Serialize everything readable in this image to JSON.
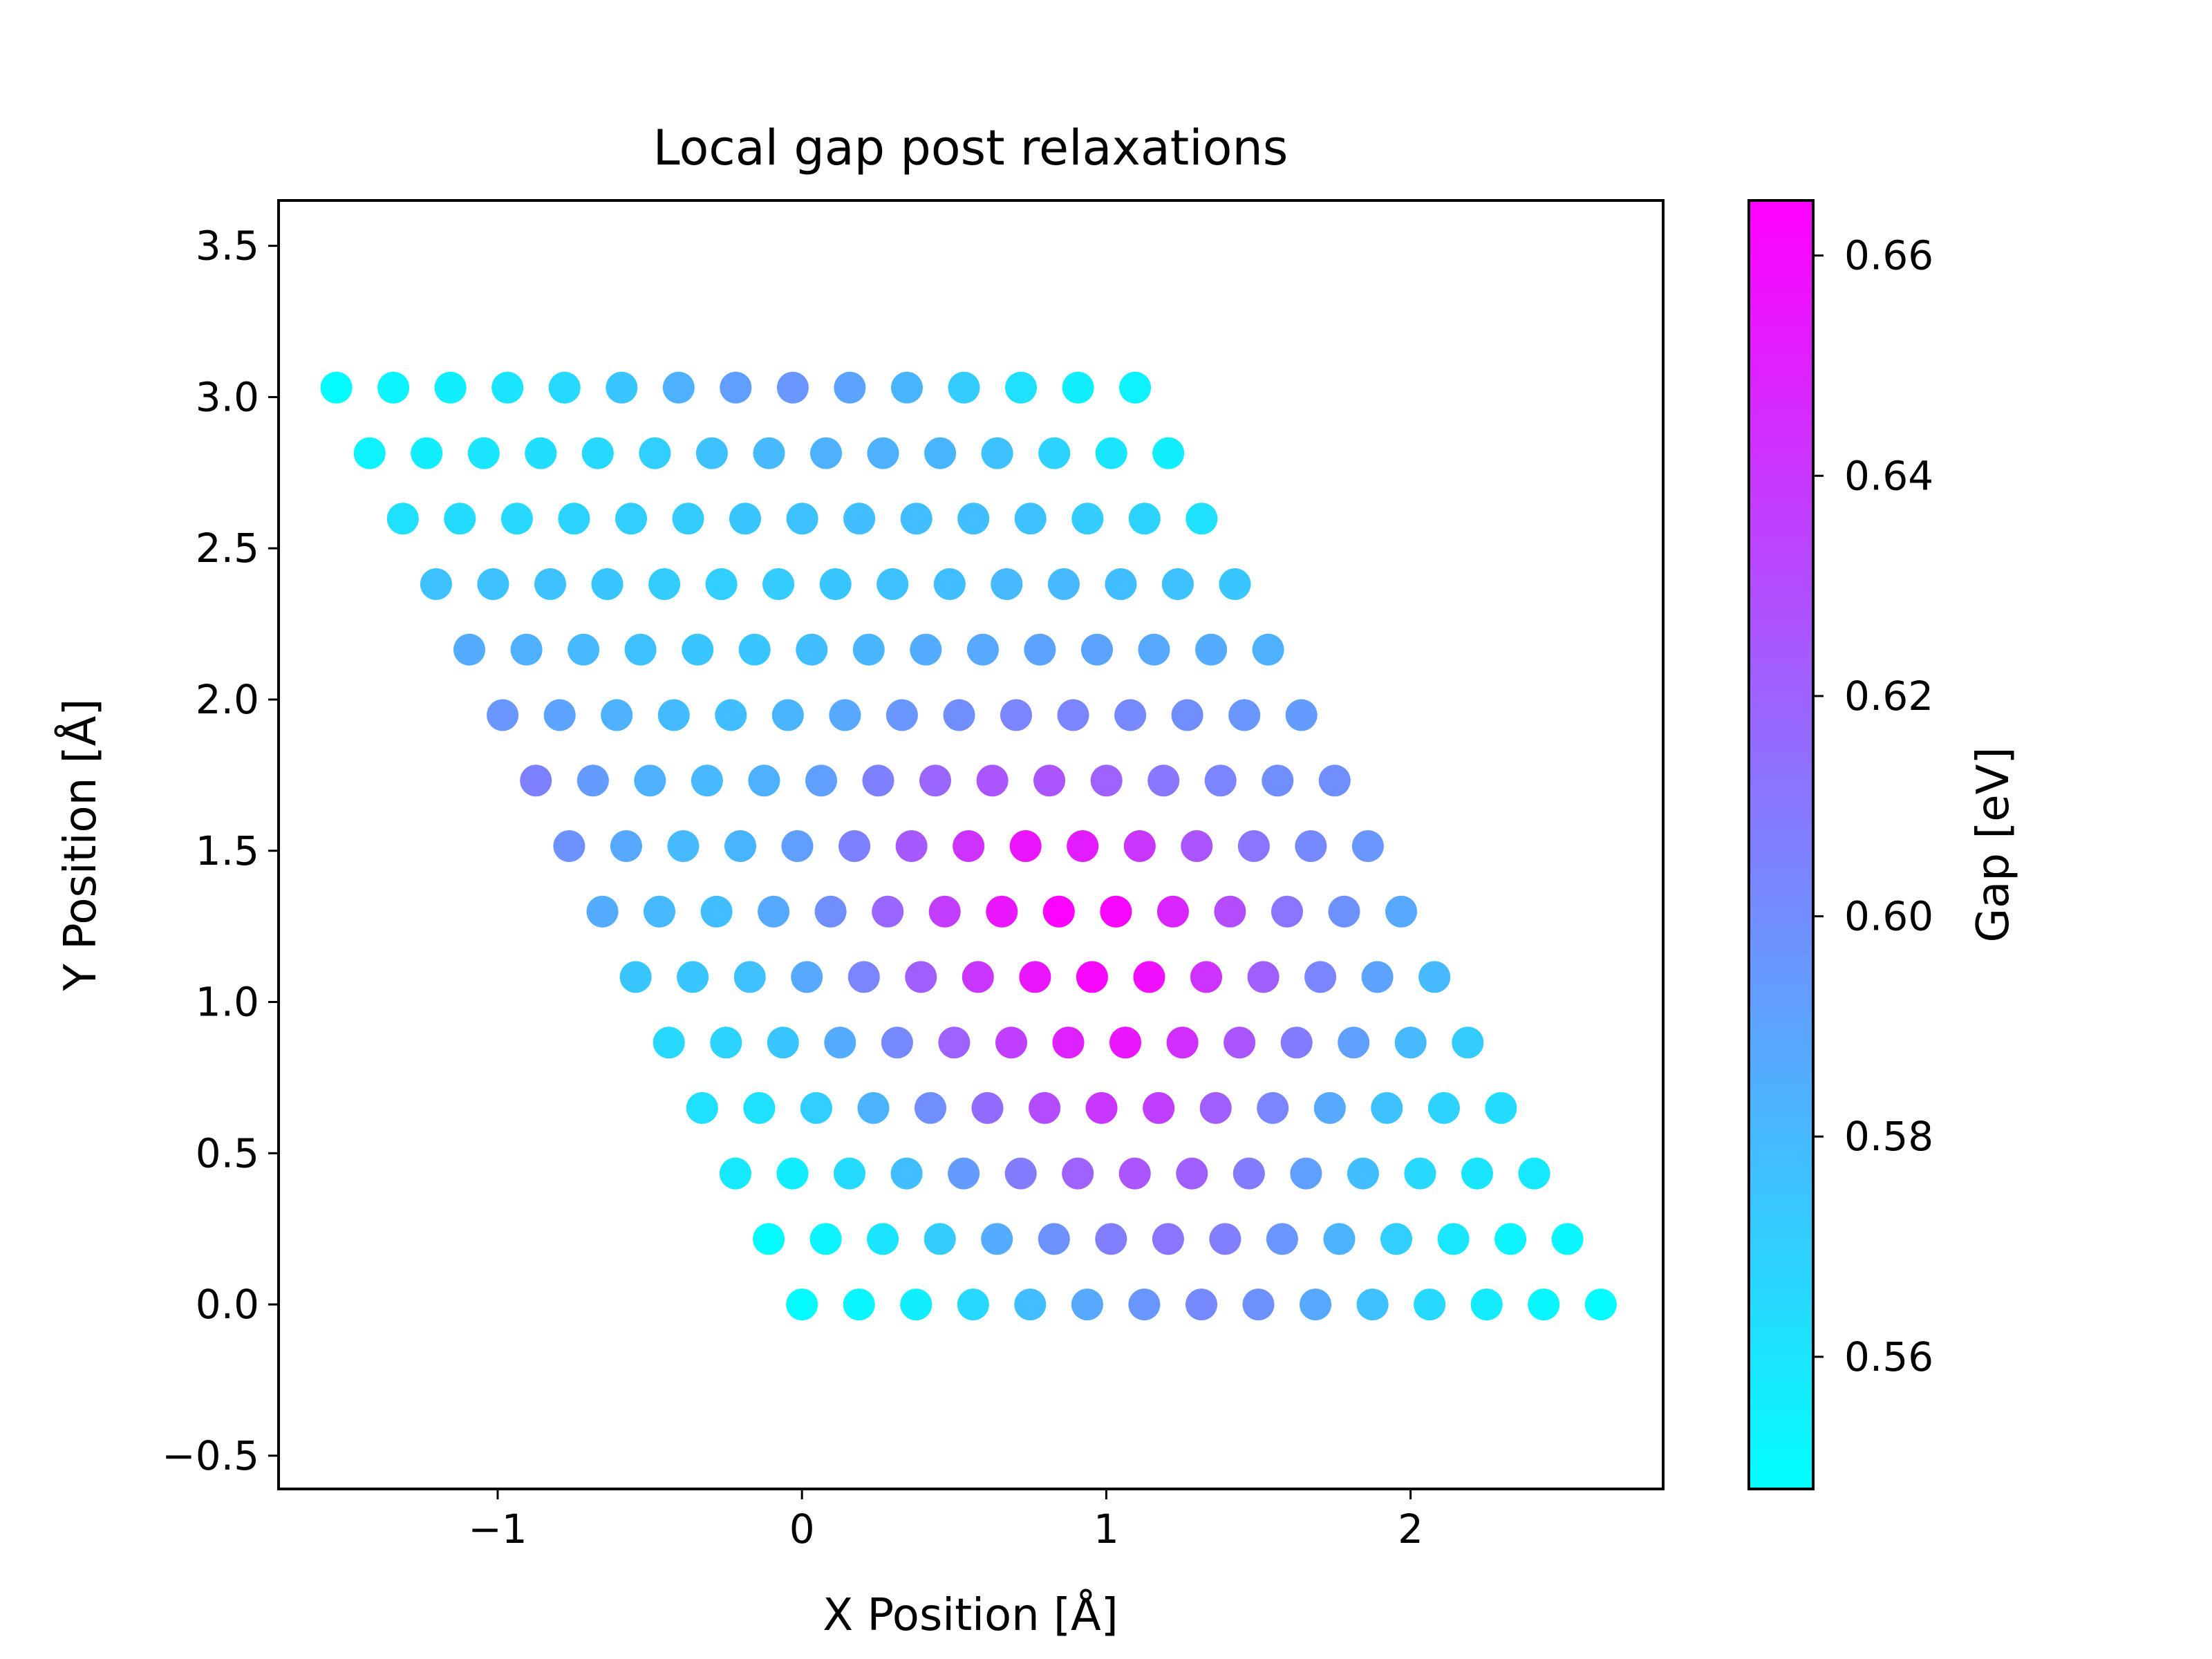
{
  "chart_data": {
    "type": "scatter",
    "title": "Local gap post relaxations",
    "xlabel": "X Position [Å]",
    "ylabel": "Y Position [Å]",
    "xlim": [
      -1.72,
      2.83
    ],
    "ylim": [
      -0.61,
      3.65
    ],
    "xticks": [
      {
        "v": -1,
        "label": "−1"
      },
      {
        "v": 0,
        "label": "0"
      },
      {
        "v": 1,
        "label": "1"
      },
      {
        "v": 2,
        "label": "2"
      }
    ],
    "yticks": [
      {
        "v": -0.5,
        "label": "−0.5"
      },
      {
        "v": 0,
        "label": "0.0"
      },
      {
        "v": 0.5,
        "label": "0.5"
      },
      {
        "v": 1,
        "label": "1.0"
      },
      {
        "v": 1.5,
        "label": "1.5"
      },
      {
        "v": 2,
        "label": "2.0"
      },
      {
        "v": 2.5,
        "label": "2.5"
      },
      {
        "v": 3,
        "label": "3.0"
      },
      {
        "v": 3.5,
        "label": "3.5"
      }
    ],
    "grid": false,
    "lattice": {
      "a1": [
        0.1875,
        0.0
      ],
      "a2": [
        -0.1093,
        0.2165
      ],
      "count_a1": 15,
      "count_a2": 15,
      "note_a1_index": "column j: x = j*a1x + i*a2x, y = i*a2y (row i from bottom)"
    },
    "gap_ev": [
      [
        0.55,
        0.552,
        0.556,
        0.566,
        0.578,
        0.588,
        0.596,
        0.602,
        0.598,
        0.588,
        0.577,
        0.566,
        0.557,
        0.552,
        0.55
      ],
      [
        0.55,
        0.553,
        0.56,
        0.572,
        0.586,
        0.598,
        0.607,
        0.612,
        0.607,
        0.596,
        0.583,
        0.57,
        0.559,
        0.553,
        0.552
      ],
      [
        0.558,
        0.556,
        0.565,
        0.578,
        0.594,
        0.608,
        0.62,
        0.626,
        0.621,
        0.608,
        0.592,
        0.578,
        0.566,
        0.56,
        0.558
      ],
      [
        0.562,
        0.562,
        0.57,
        0.583,
        0.6,
        0.616,
        0.63,
        0.64,
        0.636,
        0.622,
        0.604,
        0.588,
        0.576,
        0.568,
        0.564
      ],
      [
        0.566,
        0.568,
        0.574,
        0.586,
        0.602,
        0.62,
        0.636,
        0.65,
        0.655,
        0.644,
        0.626,
        0.608,
        0.592,
        0.58,
        0.572
      ],
      [
        0.574,
        0.574,
        0.577,
        0.588,
        0.604,
        0.622,
        0.64,
        0.655,
        0.662,
        0.658,
        0.642,
        0.622,
        0.604,
        0.59,
        0.58
      ],
      [
        0.586,
        0.58,
        0.578,
        0.587,
        0.6,
        0.618,
        0.637,
        0.655,
        0.664,
        0.662,
        0.648,
        0.63,
        0.612,
        0.598,
        0.588
      ],
      [
        0.598,
        0.588,
        0.58,
        0.582,
        0.592,
        0.606,
        0.624,
        0.642,
        0.656,
        0.652,
        0.64,
        0.626,
        0.612,
        0.602,
        0.596
      ],
      [
        0.606,
        0.594,
        0.584,
        0.58,
        0.584,
        0.592,
        0.606,
        0.618,
        0.626,
        0.626,
        0.62,
        0.61,
        0.604,
        0.6,
        0.6
      ],
      [
        0.596,
        0.59,
        0.584,
        0.579,
        0.578,
        0.582,
        0.588,
        0.596,
        0.6,
        0.604,
        0.604,
        0.602,
        0.6,
        0.596,
        0.594
      ],
      [
        0.586,
        0.584,
        0.58,
        0.576,
        0.574,
        0.574,
        0.578,
        0.582,
        0.586,
        0.588,
        0.59,
        0.59,
        0.588,
        0.586,
        0.584
      ],
      [
        0.576,
        0.576,
        0.576,
        0.574,
        0.572,
        0.57,
        0.572,
        0.574,
        0.576,
        0.578,
        0.58,
        0.58,
        0.578,
        0.576,
        0.574
      ],
      [
        0.562,
        0.564,
        0.566,
        0.568,
        0.57,
        0.572,
        0.574,
        0.576,
        0.578,
        0.578,
        0.578,
        0.576,
        0.572,
        0.568,
        0.562
      ],
      [
        0.554,
        0.556,
        0.56,
        0.563,
        0.566,
        0.57,
        0.576,
        0.58,
        0.584,
        0.584,
        0.582,
        0.576,
        0.568,
        0.56,
        0.556
      ],
      [
        0.55,
        0.553,
        0.556,
        0.56,
        0.566,
        0.574,
        0.584,
        0.592,
        0.596,
        0.59,
        0.582,
        0.572,
        0.562,
        0.556,
        0.554
      ]
    ],
    "colorbar": {
      "label": "Gap [eV]",
      "colormap": "cool",
      "vmin": 0.548,
      "vmax": 0.665,
      "ticks": [
        {
          "v": 0.56,
          "label": "0.56"
        },
        {
          "v": 0.58,
          "label": "0.58"
        },
        {
          "v": 0.6,
          "label": "0.60"
        },
        {
          "v": 0.62,
          "label": "0.62"
        },
        {
          "v": 0.64,
          "label": "0.64"
        },
        {
          "v": 0.66,
          "label": "0.66"
        }
      ],
      "color_min": "#00ffff",
      "color_max": "#ff00ff"
    }
  }
}
